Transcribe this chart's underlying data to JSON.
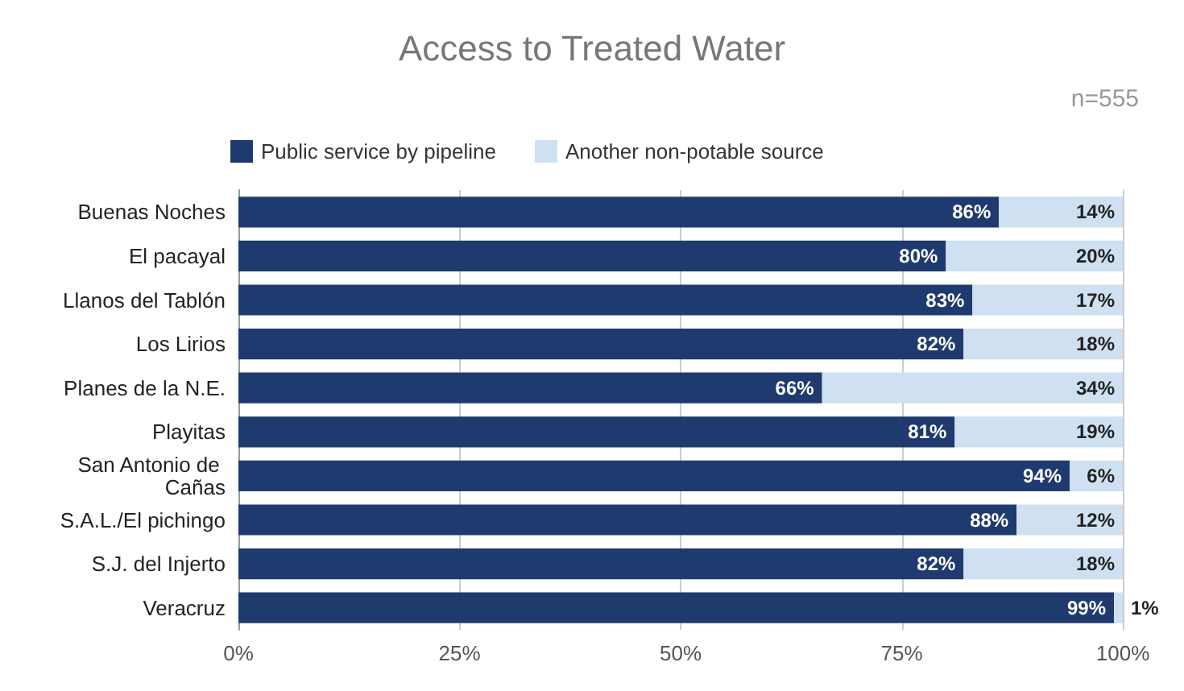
{
  "chart_data": {
    "type": "bar",
    "orientation": "horizontal",
    "stacked": true,
    "title": "Access to Treated Water",
    "annotations": [
      "n=555"
    ],
    "categories": [
      "Buenas Noches",
      "El pacayal",
      "Llanos del Tablón",
      "Los Lirios",
      "Planes de la N.E.",
      "Playitas",
      "San Antonio de Cañas",
      "S.A.L./El pichingo",
      "S.J. del Injerto",
      "Veracruz"
    ],
    "series": [
      {
        "name": "Public service by pipeline",
        "color": "#1f3a6e",
        "values": [
          86,
          80,
          83,
          82,
          66,
          81,
          94,
          88,
          82,
          99
        ],
        "value_labels": [
          "86%",
          "80%",
          "83%",
          "82%",
          "66%",
          "81%",
          "94%",
          "88%",
          "82%",
          "99%"
        ]
      },
      {
        "name": "Another non-potable source",
        "color": "#cfe0f2",
        "values": [
          14,
          20,
          17,
          18,
          34,
          19,
          6,
          12,
          18,
          1
        ],
        "value_labels": [
          "14%",
          "20%",
          "17%",
          "18%",
          "34%",
          "19%",
          "6%",
          "12%",
          "18%",
          "1%"
        ]
      }
    ],
    "xlim": [
      0,
      100
    ],
    "xticks": [
      {
        "value": 0,
        "label": "0%"
      },
      {
        "value": 25,
        "label": "25%"
      },
      {
        "value": 50,
        "label": "50%"
      },
      {
        "value": 75,
        "label": "75%"
      },
      {
        "value": 100,
        "label": "100%"
      }
    ],
    "grid": "x",
    "legend": "top left"
  }
}
